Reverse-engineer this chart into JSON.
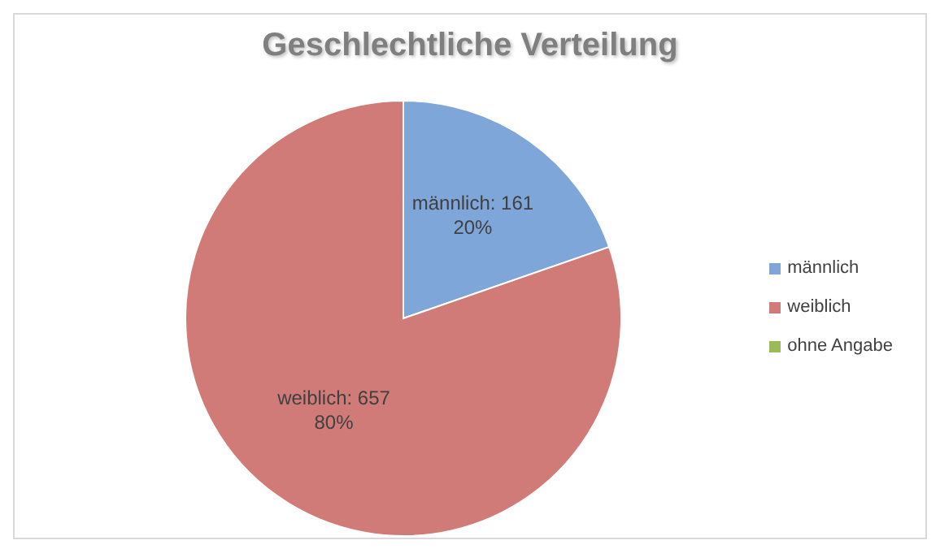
{
  "chart_data": {
    "type": "pie",
    "title": "Geschlechtliche Verteilung",
    "categories": [
      "männlich",
      "weiblich",
      "ohne Angabe"
    ],
    "values": [
      161,
      657,
      0
    ],
    "colors": [
      "#7ea6d8",
      "#d07b78",
      "#9bbb59"
    ],
    "value_labels": [
      "männlich: 161\n20%",
      "weiblich: 657\n80%",
      null
    ],
    "legend": "right"
  }
}
